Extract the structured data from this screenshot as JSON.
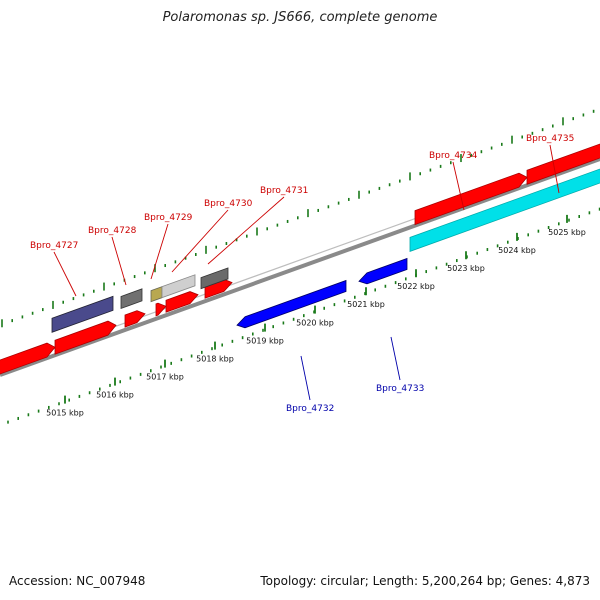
{
  "title": "Polaromonas sp. JS666, complete genome",
  "footer": {
    "accession": "Accession: NC_007948",
    "stats": "Topology: circular; Length: 5,200,264 bp; Genes: 4,873"
  },
  "colors": {
    "plus_strand": "#ff0000",
    "minus_strand": "#0000ff",
    "label_plus": "#cc0000",
    "label_minus": "#0000aa",
    "tick": "#1a7a1a",
    "backbone": "#8a8a8a",
    "highlight": "#00e0e8"
  },
  "ruler": {
    "labels": [
      "5015 kbp",
      "5016 kbp",
      "5017 kbp",
      "5018 kbp",
      "5019 kbp",
      "5020 kbp",
      "5021 kbp",
      "5022 kbp",
      "5023 kbp",
      "5024 kbp",
      "5025 kbp"
    ]
  },
  "genes": [
    {
      "name": "Bpro_4727",
      "strand": "+"
    },
    {
      "name": "Bpro_4728",
      "strand": "+"
    },
    {
      "name": "Bpro_4729",
      "strand": "+"
    },
    {
      "name": "Bpro_4730",
      "strand": "+"
    },
    {
      "name": "Bpro_4731",
      "strand": "+"
    },
    {
      "name": "Bpro_4732",
      "strand": "-"
    },
    {
      "name": "Bpro_4733",
      "strand": "-"
    },
    {
      "name": "Bpro_4734",
      "strand": "+"
    },
    {
      "name": "Bpro_4735",
      "strand": "+"
    }
  ]
}
